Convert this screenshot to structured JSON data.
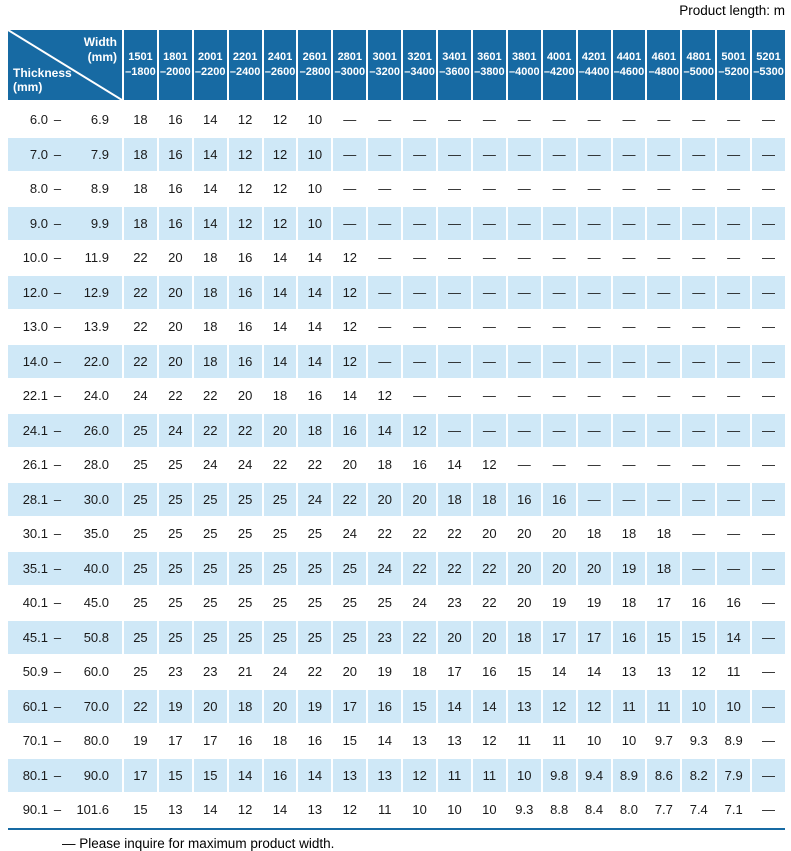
{
  "page": {
    "product_length_label": "Product length: m",
    "footnote": "— Please inquire for maximum product width."
  },
  "colors": {
    "header_bg": "#176aa3",
    "alt_row_bg": "#cfe8f7",
    "rule": "#176aa3"
  },
  "table": {
    "corner": {
      "top_line1": "Width",
      "top_line2": "(mm)",
      "bottom_line1": "Thickness",
      "bottom_line2": "(mm)"
    },
    "columns": [
      {
        "line1": "1501",
        "line2": "–1800"
      },
      {
        "line1": "1801",
        "line2": "–2000"
      },
      {
        "line1": "2001",
        "line2": "–2200"
      },
      {
        "line1": "2201",
        "line2": "–2400"
      },
      {
        "line1": "2401",
        "line2": "–2600"
      },
      {
        "line1": "2601",
        "line2": "–2800"
      },
      {
        "line1": "2801",
        "line2": "–3000"
      },
      {
        "line1": "3001",
        "line2": "–3200"
      },
      {
        "line1": "3201",
        "line2": "–3400"
      },
      {
        "line1": "3401",
        "line2": "–3600"
      },
      {
        "line1": "3601",
        "line2": "–3800"
      },
      {
        "line1": "3801",
        "line2": "–4000"
      },
      {
        "line1": "4001",
        "line2": "–4200"
      },
      {
        "line1": "4201",
        "line2": "–4400"
      },
      {
        "line1": "4401",
        "line2": "–4600"
      },
      {
        "line1": "4601",
        "line2": "–4800"
      },
      {
        "line1": "4801",
        "line2": "–5000"
      },
      {
        "line1": "5001",
        "line2": "–5200"
      },
      {
        "line1": "5201",
        "line2": "–5300"
      }
    ],
    "rows": [
      {
        "from": "6.0",
        "to": "6.9",
        "values": [
          "18",
          "16",
          "14",
          "12",
          "12",
          "10",
          "—",
          "—",
          "—",
          "—",
          "—",
          "—",
          "—",
          "—",
          "—",
          "—",
          "—",
          "—",
          "—"
        ]
      },
      {
        "from": "7.0",
        "to": "7.9",
        "values": [
          "18",
          "16",
          "14",
          "12",
          "12",
          "10",
          "—",
          "—",
          "—",
          "—",
          "—",
          "—",
          "—",
          "—",
          "—",
          "—",
          "—",
          "—",
          "—"
        ]
      },
      {
        "from": "8.0",
        "to": "8.9",
        "values": [
          "18",
          "16",
          "14",
          "12",
          "12",
          "10",
          "—",
          "—",
          "—",
          "—",
          "—",
          "—",
          "—",
          "—",
          "—",
          "—",
          "—",
          "—",
          "—"
        ]
      },
      {
        "from": "9.0",
        "to": "9.9",
        "values": [
          "18",
          "16",
          "14",
          "12",
          "12",
          "10",
          "—",
          "—",
          "—",
          "—",
          "—",
          "—",
          "—",
          "—",
          "—",
          "—",
          "—",
          "—",
          "—"
        ]
      },
      {
        "from": "10.0",
        "to": "11.9",
        "values": [
          "22",
          "20",
          "18",
          "16",
          "14",
          "14",
          "12",
          "—",
          "—",
          "—",
          "—",
          "—",
          "—",
          "—",
          "—",
          "—",
          "—",
          "—",
          "—"
        ]
      },
      {
        "from": "12.0",
        "to": "12.9",
        "values": [
          "22",
          "20",
          "18",
          "16",
          "14",
          "14",
          "12",
          "—",
          "—",
          "—",
          "—",
          "—",
          "—",
          "—",
          "—",
          "—",
          "—",
          "—",
          "—"
        ]
      },
      {
        "from": "13.0",
        "to": "13.9",
        "values": [
          "22",
          "20",
          "18",
          "16",
          "14",
          "14",
          "12",
          "—",
          "—",
          "—",
          "—",
          "—",
          "—",
          "—",
          "—",
          "—",
          "—",
          "—",
          "—"
        ]
      },
      {
        "from": "14.0",
        "to": "22.0",
        "values": [
          "22",
          "20",
          "18",
          "16",
          "14",
          "14",
          "12",
          "—",
          "—",
          "—",
          "—",
          "—",
          "—",
          "—",
          "—",
          "—",
          "—",
          "—",
          "—"
        ]
      },
      {
        "from": "22.1",
        "to": "24.0",
        "values": [
          "24",
          "22",
          "22",
          "20",
          "18",
          "16",
          "14",
          "12",
          "—",
          "—",
          "—",
          "—",
          "—",
          "—",
          "—",
          "—",
          "—",
          "—",
          "—"
        ]
      },
      {
        "from": "24.1",
        "to": "26.0",
        "values": [
          "25",
          "24",
          "22",
          "22",
          "20",
          "18",
          "16",
          "14",
          "12",
          "—",
          "—",
          "—",
          "—",
          "—",
          "—",
          "—",
          "—",
          "—",
          "—"
        ]
      },
      {
        "from": "26.1",
        "to": "28.0",
        "values": [
          "25",
          "25",
          "24",
          "24",
          "22",
          "22",
          "20",
          "18",
          "16",
          "14",
          "12",
          "—",
          "—",
          "—",
          "—",
          "—",
          "—",
          "—",
          "—"
        ]
      },
      {
        "from": "28.1",
        "to": "30.0",
        "values": [
          "25",
          "25",
          "25",
          "25",
          "25",
          "24",
          "22",
          "20",
          "20",
          "18",
          "18",
          "16",
          "16",
          "—",
          "—",
          "—",
          "—",
          "—",
          "—"
        ]
      },
      {
        "from": "30.1",
        "to": "35.0",
        "values": [
          "25",
          "25",
          "25",
          "25",
          "25",
          "25",
          "24",
          "22",
          "22",
          "22",
          "20",
          "20",
          "20",
          "18",
          "18",
          "18",
          "—",
          "—",
          "—"
        ]
      },
      {
        "from": "35.1",
        "to": "40.0",
        "values": [
          "25",
          "25",
          "25",
          "25",
          "25",
          "25",
          "25",
          "24",
          "22",
          "22",
          "22",
          "20",
          "20",
          "20",
          "19",
          "18",
          "—",
          "—",
          "—"
        ]
      },
      {
        "from": "40.1",
        "to": "45.0",
        "values": [
          "25",
          "25",
          "25",
          "25",
          "25",
          "25",
          "25",
          "25",
          "24",
          "23",
          "22",
          "20",
          "19",
          "19",
          "18",
          "17",
          "16",
          "16",
          "—"
        ]
      },
      {
        "from": "45.1",
        "to": "50.8",
        "values": [
          "25",
          "25",
          "25",
          "25",
          "25",
          "25",
          "25",
          "23",
          "22",
          "20",
          "20",
          "18",
          "17",
          "17",
          "16",
          "15",
          "15",
          "14",
          "—"
        ]
      },
      {
        "from": "50.9",
        "to": "60.0",
        "values": [
          "25",
          "23",
          "23",
          "21",
          "24",
          "22",
          "20",
          "19",
          "18",
          "17",
          "16",
          "15",
          "14",
          "14",
          "13",
          "13",
          "12",
          "11",
          "—"
        ]
      },
      {
        "from": "60.1",
        "to": "70.0",
        "values": [
          "22",
          "19",
          "20",
          "18",
          "20",
          "19",
          "17",
          "16",
          "15",
          "14",
          "14",
          "13",
          "12",
          "12",
          "11",
          "11",
          "10",
          "10",
          "—"
        ]
      },
      {
        "from": "70.1",
        "to": "80.0",
        "values": [
          "19",
          "17",
          "17",
          "16",
          "18",
          "16",
          "15",
          "14",
          "13",
          "13",
          "12",
          "11",
          "11",
          "10",
          "10",
          "9.7",
          "9.3",
          "8.9",
          "—"
        ]
      },
      {
        "from": "80.1",
        "to": "90.0",
        "values": [
          "17",
          "15",
          "15",
          "14",
          "16",
          "14",
          "13",
          "13",
          "12",
          "11",
          "11",
          "10",
          "9.8",
          "9.4",
          "8.9",
          "8.6",
          "8.2",
          "7.9",
          "—"
        ]
      },
      {
        "from": "90.1",
        "to": "101.6",
        "values": [
          "15",
          "13",
          "14",
          "12",
          "14",
          "13",
          "12",
          "11",
          "10",
          "10",
          "10",
          "9.3",
          "8.8",
          "8.4",
          "8.0",
          "7.7",
          "7.4",
          "7.1",
          "—"
        ]
      }
    ]
  }
}
